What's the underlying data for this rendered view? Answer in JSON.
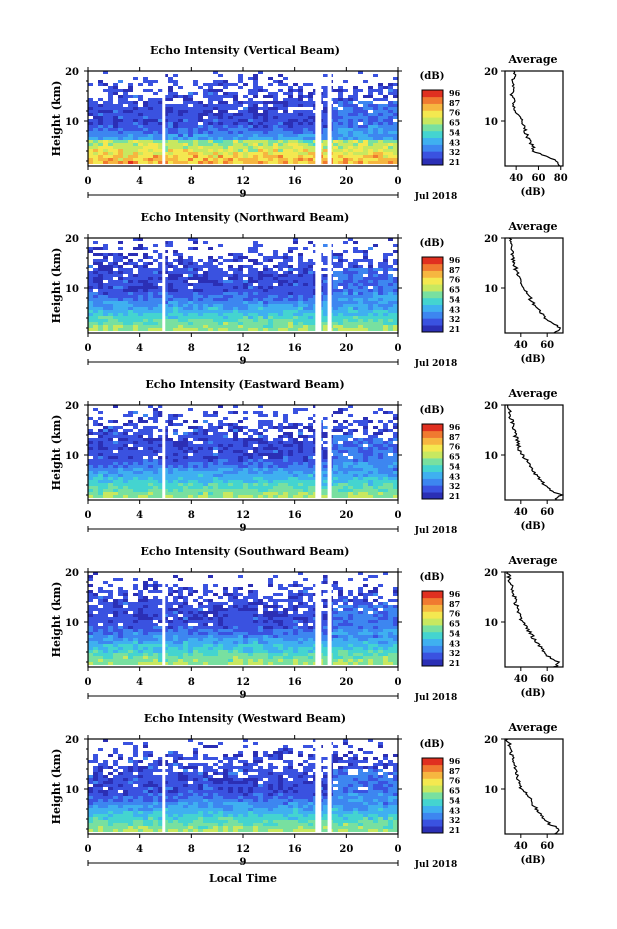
{
  "chart_data": [
    {
      "type": "heatmap",
      "title": "Echo Intensity (Vertical Beam)",
      "ylabel": "Height (km)",
      "xlabel": "",
      "x_ticks": [
        "0",
        "4",
        "8",
        "12",
        "16",
        "20",
        "0"
      ],
      "y_ticks": [
        "10",
        "20"
      ],
      "x_range": [
        0,
        24
      ],
      "y_range": [
        1,
        20
      ],
      "date_label": "9",
      "date_right": "Jul 2018",
      "colorbar": {
        "unit": "(dB)",
        "ticks": [
          "96",
          "87",
          "76",
          "65",
          "54",
          "43",
          "32",
          "21"
        ],
        "range": [
          21,
          96
        ]
      },
      "avg_profile": {
        "title": "Average",
        "xlabel": "(dB)",
        "x_ticks": [
          "40",
          "60",
          "80"
        ],
        "y_ticks": [
          "10",
          "20"
        ],
        "x_range": [
          30,
          82
        ],
        "heights": [
          1,
          2,
          3,
          4,
          5,
          6,
          7,
          8,
          9,
          10,
          11,
          12,
          13,
          14,
          15,
          16,
          17,
          18,
          19,
          20
        ],
        "values": [
          80,
          76,
          66,
          56,
          55,
          52,
          50,
          48,
          47,
          45,
          42,
          40,
          38,
          38,
          36,
          37,
          38,
          36,
          39,
          38
        ]
      }
    },
    {
      "type": "heatmap",
      "title": "Echo Intensity (Northward Beam)",
      "ylabel": "Height (km)",
      "xlabel": "",
      "x_ticks": [
        "0",
        "4",
        "8",
        "12",
        "16",
        "20",
        "0"
      ],
      "y_ticks": [
        "10",
        "20"
      ],
      "x_range": [
        0,
        24
      ],
      "y_range": [
        1,
        20
      ],
      "date_label": "9",
      "date_right": "Jul 2018",
      "colorbar": {
        "unit": "(dB)",
        "ticks": [
          "96",
          "87",
          "76",
          "65",
          "54",
          "43",
          "32",
          "21"
        ],
        "range": [
          21,
          96
        ]
      },
      "avg_profile": {
        "title": "Average",
        "xlabel": "(dB)",
        "x_ticks": [
          "40",
          "60"
        ],
        "y_ticks": [
          "10",
          "20"
        ],
        "x_range": [
          28,
          72
        ],
        "heights": [
          1,
          2,
          3,
          4,
          5,
          6,
          7,
          8,
          9,
          10,
          11,
          12,
          13,
          14,
          15,
          16,
          17,
          18,
          19,
          20
        ],
        "values": [
          66,
          70,
          64,
          58,
          56,
          52,
          49,
          47,
          45,
          42,
          40,
          38,
          37,
          36,
          35,
          34,
          33,
          33,
          32,
          31
        ]
      }
    },
    {
      "type": "heatmap",
      "title": "Echo Intensity (Eastward Beam)",
      "ylabel": "Height (km)",
      "xlabel": "",
      "x_ticks": [
        "0",
        "4",
        "8",
        "12",
        "16",
        "20",
        "0"
      ],
      "y_ticks": [
        "10",
        "20"
      ],
      "x_range": [
        0,
        24
      ],
      "y_range": [
        1,
        20
      ],
      "date_label": "9",
      "date_right": "Jul 2018",
      "colorbar": {
        "unit": "(dB)",
        "ticks": [
          "96",
          "87",
          "76",
          "65",
          "54",
          "43",
          "32",
          "21"
        ],
        "range": [
          21,
          96
        ]
      },
      "avg_profile": {
        "title": "Average",
        "xlabel": "(dB)",
        "x_ticks": [
          "40",
          "60"
        ],
        "y_ticks": [
          "10",
          "20"
        ],
        "x_range": [
          28,
          72
        ],
        "heights": [
          1,
          2,
          3,
          4,
          5,
          6,
          7,
          8,
          9,
          10,
          11,
          12,
          13,
          14,
          15,
          16,
          17,
          18,
          19,
          20
        ],
        "values": [
          66,
          70,
          62,
          58,
          55,
          52,
          49,
          47,
          44,
          41,
          39,
          38,
          37,
          36,
          35,
          34,
          33,
          32,
          31,
          30
        ]
      }
    },
    {
      "type": "heatmap",
      "title": "Echo Intensity (Southward Beam)",
      "ylabel": "Height (km)",
      "xlabel": "",
      "x_ticks": [
        "0",
        "4",
        "8",
        "12",
        "16",
        "20",
        "0"
      ],
      "y_ticks": [
        "10",
        "20"
      ],
      "x_range": [
        0,
        24
      ],
      "y_range": [
        1,
        20
      ],
      "date_label": "9",
      "date_right": "Jul 2018",
      "colorbar": {
        "unit": "(dB)",
        "ticks": [
          "96",
          "87",
          "76",
          "65",
          "54",
          "43",
          "32",
          "21"
        ],
        "range": [
          21,
          96
        ]
      },
      "avg_profile": {
        "title": "Average",
        "xlabel": "(dB)",
        "x_ticks": [
          "40",
          "60"
        ],
        "y_ticks": [
          "10",
          "20"
        ],
        "x_range": [
          28,
          72
        ],
        "heights": [
          1,
          2,
          3,
          4,
          5,
          6,
          7,
          8,
          9,
          10,
          11,
          12,
          13,
          14,
          15,
          16,
          17,
          18,
          19,
          20
        ],
        "values": [
          66,
          68,
          62,
          57,
          55,
          52,
          49,
          47,
          44,
          41,
          39,
          38,
          37,
          36,
          35,
          34,
          33,
          32,
          31,
          30
        ]
      }
    },
    {
      "type": "heatmap",
      "title": "Echo Intensity (Westward Beam)",
      "ylabel": "Height (km)",
      "xlabel": "Local Time",
      "x_ticks": [
        "0",
        "4",
        "8",
        "12",
        "16",
        "20",
        "0"
      ],
      "y_ticks": [
        "10",
        "20"
      ],
      "x_range": [
        0,
        24
      ],
      "y_range": [
        1,
        20
      ],
      "date_label": "9",
      "date_right": "Jul 2018",
      "colorbar": {
        "unit": "(dB)",
        "ticks": [
          "96",
          "87",
          "76",
          "65",
          "54",
          "43",
          "32",
          "21"
        ],
        "range": [
          21,
          96
        ]
      },
      "avg_profile": {
        "title": "Average",
        "xlabel": "(dB)",
        "x_ticks": [
          "40",
          "60"
        ],
        "y_ticks": [
          "10",
          "20"
        ],
        "x_range": [
          28,
          72
        ],
        "heights": [
          1,
          2,
          3,
          4,
          5,
          6,
          7,
          8,
          9,
          10,
          11,
          12,
          13,
          14,
          15,
          16,
          17,
          18,
          19,
          20
        ],
        "values": [
          66,
          69,
          62,
          57,
          55,
          52,
          49,
          47,
          44,
          41,
          39,
          38,
          37,
          36,
          35,
          34,
          33,
          32,
          31,
          30
        ]
      }
    }
  ],
  "colors": {
    "scale": [
      "#2b2fb5",
      "#3a52e0",
      "#3d86f0",
      "#3fb0f0",
      "#44d4d0",
      "#78e0a0",
      "#c8e860",
      "#f4e850",
      "#f6b640",
      "#f07a30",
      "#e03020"
    ],
    "profile": "#000000",
    "frame": "#000000"
  }
}
